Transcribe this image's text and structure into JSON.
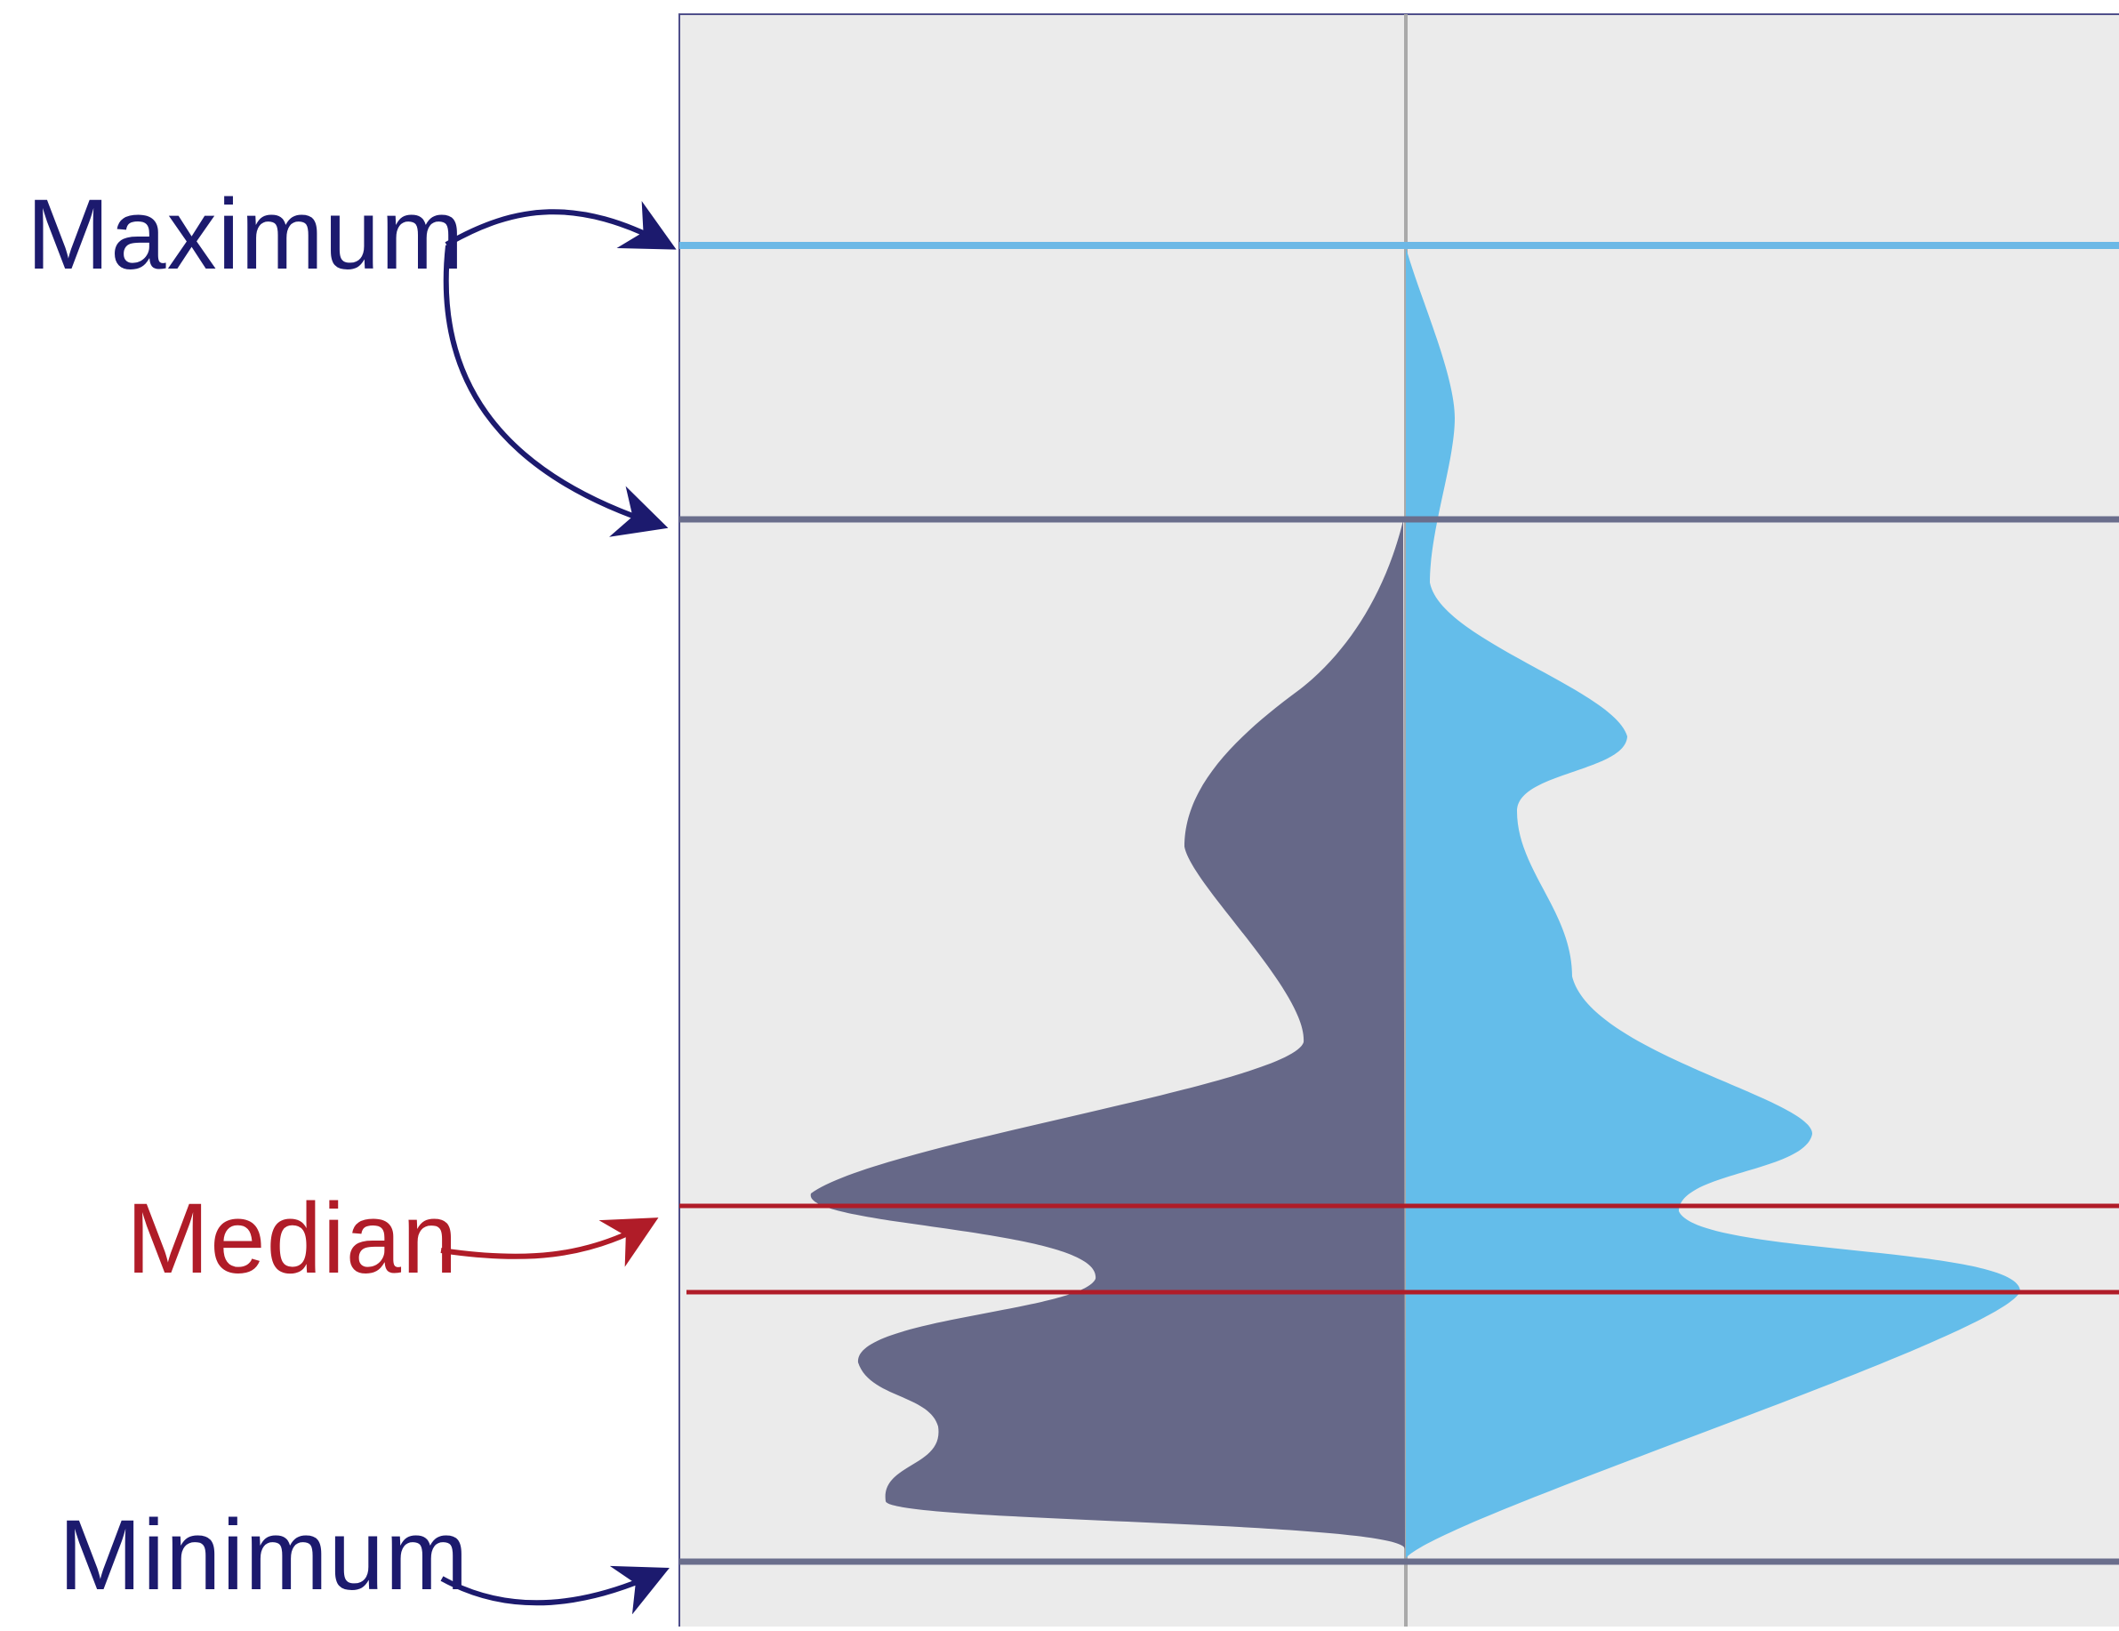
{
  "labels": {
    "maximum": "Maximum",
    "median": "Median",
    "minimum": "Minimum"
  },
  "colors": {
    "panel_background": "#ebebeb",
    "panel_border": "#4e4e8a",
    "center_axis": "#a9a9a9",
    "left_distribution": "#666888",
    "right_distribution": "#64bdea",
    "left_reference_lines": "#6a6e8c",
    "right_reference_lines": "#6cb8e6",
    "median_lines": "#b01c28",
    "maximum_minimum_label": "#1c1a6e",
    "median_label": "#b01c28",
    "maximum_minimum_arrows": "#1c1a6e",
    "median_arrow": "#b01c28"
  }
}
